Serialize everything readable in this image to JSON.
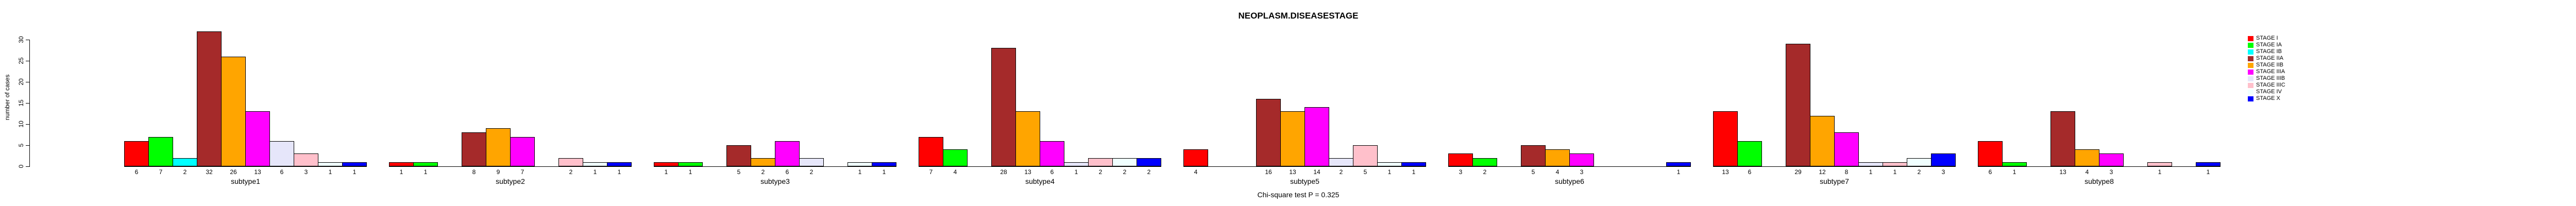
{
  "title": "NEOPLASM.DISEASESTAGE",
  "footer": {
    "caption": "Chi-square test P = 0.325"
  },
  "y_axis": {
    "label": "number of cases",
    "ticks": [
      0,
      5,
      10,
      15,
      20,
      25,
      30
    ]
  },
  "legend": {
    "position": "right"
  },
  "chart_data": {
    "type": "bar",
    "title": "NEOPLASM.DISEASESTAGE",
    "xlabel": "",
    "ylabel": "number of cases",
    "ylim": [
      0,
      30
    ],
    "yticks": [
      0,
      5,
      10,
      15,
      20,
      25,
      30
    ],
    "grid": false,
    "legend_position": "right",
    "bar_value_labels": true,
    "categories": [
      "subtype1",
      "subtype2",
      "subtype3",
      "subtype4",
      "subtype5",
      "subtype6",
      "subtype7",
      "subtype8"
    ],
    "series": [
      {
        "name": "STAGE I",
        "color": "#FF0000",
        "values": [
          6,
          1,
          1,
          7,
          4,
          3,
          13,
          6
        ]
      },
      {
        "name": "STAGE IA",
        "color": "#00FF00",
        "values": [
          7,
          1,
          1,
          4,
          0,
          2,
          6,
          1
        ]
      },
      {
        "name": "STAGE IB",
        "color": "#00FFFF",
        "values": [
          2,
          0,
          0,
          0,
          0,
          0,
          0,
          0
        ]
      },
      {
        "name": "STAGE IIA",
        "color": "#A52A2A",
        "values": [
          32,
          8,
          5,
          28,
          16,
          5,
          29,
          13
        ]
      },
      {
        "name": "STAGE IIB",
        "color": "#FFA500",
        "values": [
          26,
          9,
          2,
          13,
          13,
          4,
          12,
          4
        ]
      },
      {
        "name": "STAGE IIIA",
        "color": "#FF00FF",
        "values": [
          13,
          7,
          6,
          6,
          14,
          3,
          8,
          3
        ]
      },
      {
        "name": "STAGE IIIB",
        "color": "#E6E6FA",
        "values": [
          6,
          0,
          2,
          1,
          2,
          0,
          1,
          0
        ]
      },
      {
        "name": "STAGE IIIC",
        "color": "#FFC0CB",
        "values": [
          3,
          2,
          0,
          2,
          5,
          0,
          1,
          1
        ]
      },
      {
        "name": "STAGE IV",
        "color": "#F0FFFF",
        "values": [
          1,
          1,
          1,
          2,
          1,
          0,
          2,
          0
        ]
      },
      {
        "name": "STAGE X",
        "color": "#0000FF",
        "values": [
          1,
          1,
          1,
          2,
          1,
          1,
          3,
          1
        ]
      }
    ]
  }
}
